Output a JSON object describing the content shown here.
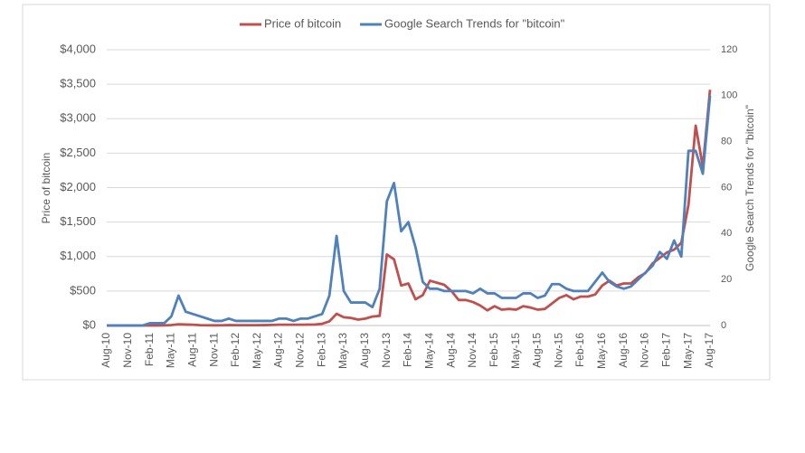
{
  "chart_data": {
    "type": "line",
    "categories": [
      "Aug-10",
      null,
      null,
      "Nov-10",
      null,
      null,
      "Feb-11",
      null,
      null,
      "May-11",
      null,
      null,
      "Aug-11",
      null,
      null,
      "Nov-11",
      null,
      null,
      "Feb-12",
      null,
      null,
      "May-12",
      null,
      null,
      "Aug-12",
      null,
      null,
      "Nov-12",
      null,
      null,
      "Feb-13",
      null,
      null,
      "May-13",
      null,
      null,
      "Aug-13",
      null,
      null,
      "Nov-13",
      null,
      null,
      "Feb-14",
      null,
      null,
      "May-14",
      null,
      null,
      "Aug-14",
      null,
      null,
      "Nov-14",
      null,
      null,
      "Feb-15",
      null,
      null,
      "May-15",
      null,
      null,
      "Aug-15",
      null,
      null,
      "Nov-15",
      null,
      null,
      "Feb-16",
      null,
      null,
      "May-16",
      null,
      null,
      "Aug-16",
      null,
      null,
      "Nov-16",
      null,
      null,
      "Feb-17",
      null,
      null,
      "May-17",
      null,
      null,
      "Aug-17"
    ],
    "series": [
      {
        "name": "Price of bitcoin",
        "color": "#c0504d",
        "values": [
          0.07,
          0.06,
          0.2,
          0.25,
          0.3,
          0.4,
          0.9,
          0.9,
          1.5,
          7,
          18,
          14,
          11,
          5,
          3.5,
          2.5,
          3.5,
          6,
          5,
          5,
          5,
          5,
          6,
          8,
          11,
          11,
          11,
          11,
          13,
          15,
          25,
          60,
          170,
          120,
          110,
          85,
          100,
          130,
          140,
          1030,
          960,
          580,
          610,
          380,
          440,
          650,
          620,
          590,
          500,
          370,
          370,
          340,
          290,
          220,
          280,
          230,
          240,
          230,
          280,
          260,
          230,
          240,
          320,
          400,
          440,
          380,
          420,
          420,
          450,
          580,
          650,
          580,
          610,
          610,
          700,
          760,
          900,
          980,
          1060,
          1100,
          1200,
          1750,
          2900,
          2300,
          3420
        ]
      },
      {
        "name": "Google Search Trends for \"bitcoin\"",
        "color": "#4f81bd",
        "axis": "y2",
        "values": [
          0,
          0,
          0,
          0,
          0,
          0,
          1,
          1,
          1,
          4,
          13,
          6,
          5,
          4,
          3,
          2,
          2,
          3,
          2,
          2,
          2,
          2,
          2,
          2,
          3,
          3,
          2,
          3,
          3,
          4,
          5,
          13,
          39,
          15,
          10,
          10,
          10,
          8,
          16,
          54,
          62,
          41,
          45,
          34,
          19,
          16,
          16,
          15,
          15,
          15,
          15,
          14,
          16,
          14,
          14,
          12,
          12,
          12,
          14,
          14,
          12,
          13,
          18,
          18,
          16,
          15,
          15,
          15,
          19,
          23,
          19,
          17,
          16,
          17,
          20,
          23,
          26,
          32,
          29,
          37,
          30,
          76,
          76,
          66,
          100
        ]
      }
    ],
    "y_label": "Price of bitcoin",
    "y2_label": "Google Search Trends for \"bitcoin\"",
    "ylim": [
      0,
      4000
    ],
    "yticks": [
      {
        "value": 0,
        "label": "$0"
      },
      {
        "value": 500,
        "label": "$500"
      },
      {
        "value": 1000,
        "label": "$1,000"
      },
      {
        "value": 1500,
        "label": "$1,500"
      },
      {
        "value": 2000,
        "label": "$2,000"
      },
      {
        "value": 2500,
        "label": "$2,500"
      },
      {
        "value": 3000,
        "label": "$3,000"
      },
      {
        "value": 3500,
        "label": "$3,500"
      },
      {
        "value": 4000,
        "label": "$4,000"
      }
    ],
    "y2lim": [
      0,
      120
    ],
    "y2ticks": [
      0,
      20,
      40,
      60,
      80,
      100,
      120
    ],
    "grid": true,
    "legend": "top"
  }
}
